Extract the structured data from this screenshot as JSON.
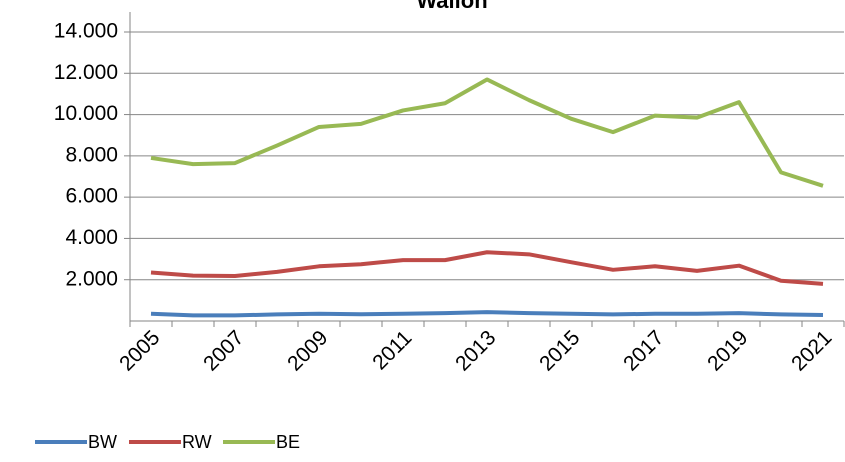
{
  "chart_data": {
    "type": "line",
    "title": "Wallon",
    "categories": [
      "2005",
      null,
      "2007",
      null,
      "2009",
      null,
      "2011",
      null,
      "2013",
      null,
      "2015",
      null,
      "2017",
      null,
      "2019",
      null,
      "2021"
    ],
    "series": [
      {
        "name": "BW",
        "color": "#4a7ebb",
        "values": [
          350,
          270,
          270,
          320,
          350,
          330,
          350,
          380,
          430,
          380,
          350,
          320,
          350,
          350,
          380,
          320,
          290
        ]
      },
      {
        "name": "RW",
        "color": "#be4b48",
        "values": [
          2350,
          2200,
          2180,
          2380,
          2650,
          2750,
          2950,
          2950,
          3330,
          3230,
          2850,
          2480,
          2650,
          2430,
          2680,
          1950,
          1800
        ]
      },
      {
        "name": "BE",
        "color": "#98b954",
        "values": [
          7900,
          7600,
          7650,
          8500,
          9400,
          9550,
          10200,
          10550,
          11700,
          10700,
          9800,
          9150,
          9950,
          9850,
          10600,
          7200,
          6550
        ]
      }
    ],
    "ylim": [
      0,
      14000
    ],
    "yticks": [
      {
        "value": 2000,
        "label": "2.000"
      },
      {
        "value": 4000,
        "label": "4.000"
      },
      {
        "value": 6000,
        "label": "6.000"
      },
      {
        "value": 8000,
        "label": "8.000"
      },
      {
        "value": 10000,
        "label": "10.000"
      },
      {
        "value": 12000,
        "label": "12.000"
      },
      {
        "value": 14000,
        "label": "14.000"
      }
    ],
    "grid": true,
    "legend": "bottom-left"
  }
}
